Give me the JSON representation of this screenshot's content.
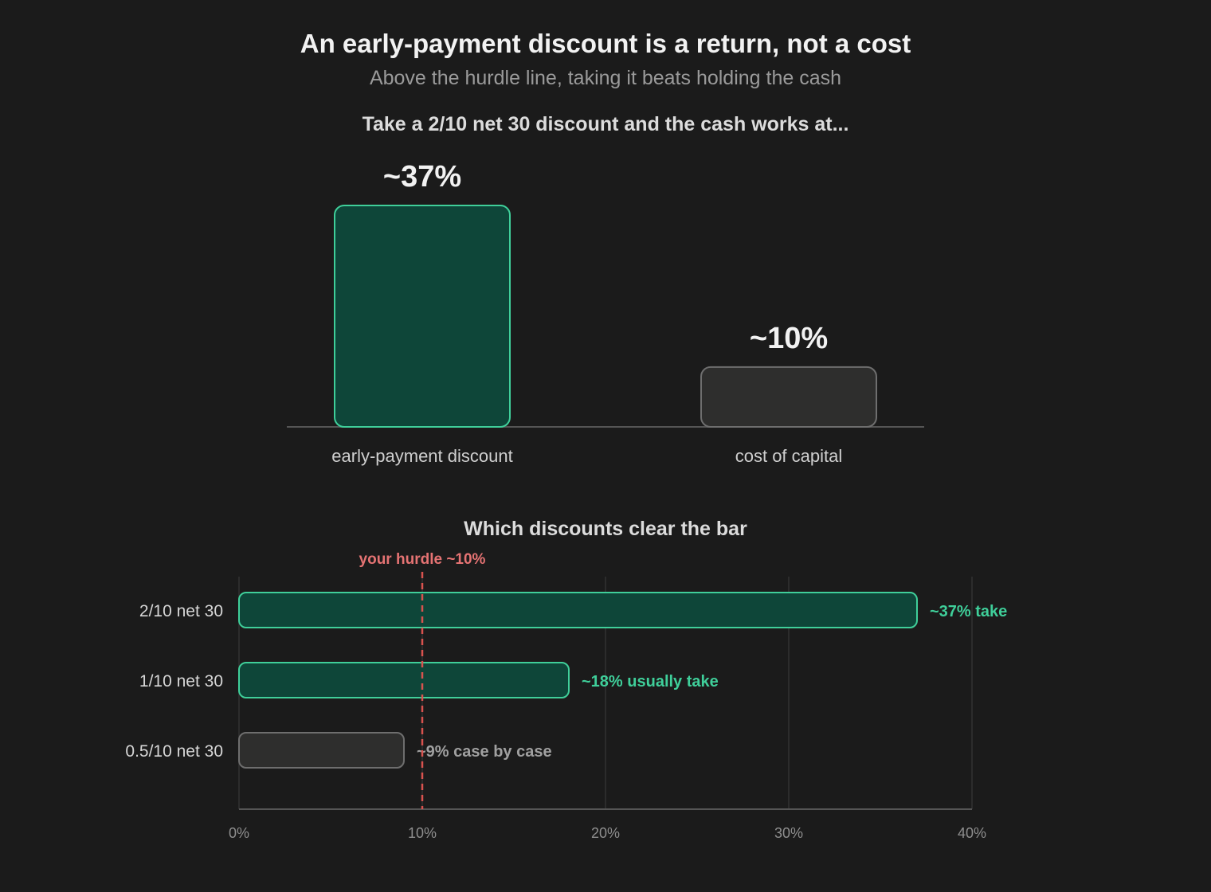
{
  "title": "An early-payment discount is a return, not a cost",
  "subtitle": "Above the hurdle line, taking it beats holding the cash",
  "colors": {
    "background": "#1b1b1b",
    "accent_fill": "#0e4639",
    "accent_stroke": "#3fcf9a",
    "accent_text": "#3fcf9a",
    "neutral_fill": "#2e2e2d",
    "neutral_stroke": "#6e6e6e",
    "neutral_text": "#a0a0a0",
    "hurdle": "#d9534f",
    "hurdle_label": "#e57373",
    "grid": "#333333",
    "axis": "#555555"
  },
  "chart_data": [
    {
      "type": "bar",
      "title": "Take a 2/10 net 30 discount and the cash works at...",
      "categories": [
        "early-payment discount",
        "cost of capital"
      ],
      "values": [
        37,
        10
      ],
      "data_labels": [
        "~37%",
        "~10%"
      ],
      "styles": [
        "accent",
        "neutral"
      ],
      "ylim": [
        0,
        40
      ],
      "grid": false
    },
    {
      "type": "bar",
      "orientation": "horizontal",
      "title": "Which discounts clear the bar",
      "categories": [
        "2/10 net 30",
        "1/10 net 30",
        "0.5/10 net 30"
      ],
      "values": [
        37,
        18,
        9
      ],
      "data_labels": [
        "~37% take",
        "~18% usually take",
        "~9% case by case"
      ],
      "styles": [
        "accent",
        "accent",
        "neutral"
      ],
      "xlim": [
        0,
        40
      ],
      "xticks": [
        0,
        10,
        20,
        30,
        40
      ],
      "xtick_labels": [
        "0%",
        "10%",
        "20%",
        "30%",
        "40%"
      ],
      "grid": true,
      "reference_line": {
        "value": 10,
        "label": "your hurdle ~10%"
      }
    }
  ]
}
